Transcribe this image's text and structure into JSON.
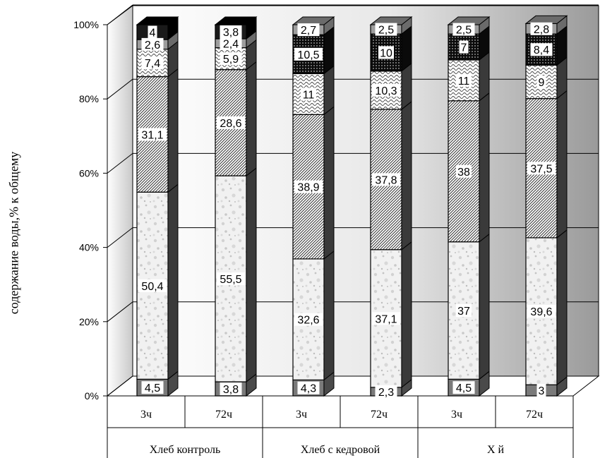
{
  "chart_data": {
    "type": "bar",
    "stacked": true,
    "percent": true,
    "ylabel": "содержание воды,% к общему",
    "y_ticks": [
      "0%",
      "20%",
      "40%",
      "60%",
      "80%",
      "100%"
    ],
    "ylim": [
      0,
      100
    ],
    "grid": true,
    "legend": "none",
    "categories": [
      "3ч",
      "72ч",
      "3ч",
      "72ч",
      "3ч",
      "72ч"
    ],
    "groups": [
      {
        "label": "Хлеб контроль",
        "span": 2
      },
      {
        "label": "Хлеб с кедровой",
        "span": 2
      },
      {
        "label": "Х                        й",
        "span": 2
      }
    ],
    "series": [
      {
        "values": [
          4.5,
          3.8,
          4.3,
          2.3,
          4.5,
          3
        ],
        "labels": [
          "4,5",
          "3,8",
          "4,3",
          "2,3",
          "4,5",
          "3"
        ],
        "pattern": "dark-gray"
      },
      {
        "values": [
          50.4,
          55.5,
          32.6,
          37.1,
          37,
          39.6
        ],
        "labels": [
          "50,4",
          "55,5",
          "32,6",
          "37,1",
          "37",
          "39,6"
        ],
        "pattern": "marble"
      },
      {
        "values": [
          31.1,
          28.6,
          38.9,
          37.8,
          38,
          37.5
        ],
        "labels": [
          "31,1",
          "28,6",
          "38,9",
          "37,8",
          "38",
          "37,5"
        ],
        "pattern": "diagonal-hatch"
      },
      {
        "values": [
          7.4,
          5.9,
          11,
          10.3,
          11,
          9
        ],
        "labels": [
          "7,4",
          "5,9",
          "11",
          "10,3",
          "11",
          "9"
        ],
        "pattern": "wave"
      },
      {
        "values": [
          0,
          0,
          10.5,
          10,
          7,
          8.4
        ],
        "labels": [
          "",
          "",
          "10,5",
          "10",
          "7",
          "8,4"
        ],
        "pattern": "dots"
      },
      {
        "values": [
          2.6,
          2.4,
          2.7,
          2.5,
          2.5,
          2.8
        ],
        "labels": [
          "2,6",
          "2,4",
          "2,7",
          "2,5",
          "2,5",
          "2,8"
        ],
        "pattern": "gray"
      },
      {
        "values": [
          4,
          3.8,
          0,
          0,
          0,
          0
        ],
        "labels": [
          "4",
          "3,8",
          "",
          "",
          "",
          ""
        ],
        "pattern": "black-top"
      }
    ]
  }
}
